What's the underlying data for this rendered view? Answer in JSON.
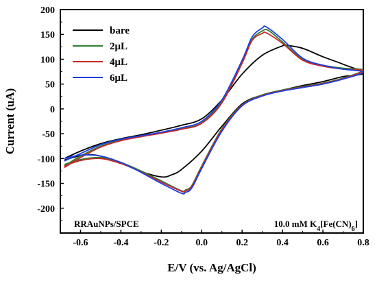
{
  "chart_data": {
    "type": "line",
    "xlabel": "E/V (vs. Ag/AgCl)",
    "ylabel": "Current (uA)",
    "xlim": [
      -0.7,
      0.8
    ],
    "ylim": [
      -250,
      200
    ],
    "x_ticks": [
      -0.6,
      -0.4,
      -0.2,
      0.0,
      0.2,
      0.4,
      0.6,
      0.8
    ],
    "x_tick_labels": [
      "-0.6",
      "-0.4",
      "-0.2",
      "0.0",
      "0.2",
      "0.4",
      "0.6",
      "0.8"
    ],
    "y_ticks": [
      -200,
      -150,
      -100,
      -50,
      0,
      50,
      100,
      150,
      200
    ],
    "y_tick_labels": [
      "-200",
      "-150",
      "-100",
      "-50",
      "0",
      "50",
      "100",
      "150",
      "200"
    ],
    "grid": false,
    "legend_position": "top-left",
    "annotation_left": "RRAuNPs/SPCE",
    "annotation_right": {
      "prefix": "10.0 mM K",
      "sub1": "4",
      "middle": "[Fe(CN)",
      "sub2": "6",
      "suffix": "]"
    },
    "series": [
      {
        "name": "bare",
        "color": "#000000",
        "x": [
          -0.68,
          -0.6,
          -0.5,
          -0.4,
          -0.3,
          -0.2,
          -0.1,
          0.0,
          0.1,
          0.2,
          0.3,
          0.4,
          0.42,
          0.5,
          0.6,
          0.7,
          0.8,
          0.7,
          0.6,
          0.5,
          0.4,
          0.3,
          0.2,
          0.1,
          0.0,
          -0.1,
          -0.15,
          -0.2,
          -0.3,
          -0.4,
          -0.5,
          -0.55,
          -0.6,
          -0.68
        ],
        "y": [
          -100,
          -85,
          -70,
          -60,
          -52,
          -43,
          -33,
          -20,
          18,
          70,
          108,
          127,
          128,
          122,
          105,
          90,
          72,
          65,
          55,
          47,
          38,
          28,
          10,
          -35,
          -85,
          -122,
          -133,
          -137,
          -126,
          -108,
          -95,
          -92,
          -94,
          -103
        ]
      },
      {
        "name": "2μL",
        "color": "#2e7d32",
        "x": [
          -0.68,
          -0.6,
          -0.5,
          -0.4,
          -0.3,
          -0.2,
          -0.1,
          0.0,
          0.1,
          0.2,
          0.25,
          0.3,
          0.33,
          0.4,
          0.5,
          0.6,
          0.7,
          0.8,
          0.7,
          0.6,
          0.5,
          0.4,
          0.3,
          0.2,
          0.1,
          0.0,
          -0.05,
          -0.08,
          -0.1,
          -0.2,
          -0.3,
          -0.4,
          -0.5,
          -0.6,
          -0.68
        ],
        "y": [
          -115,
          -95,
          -75,
          -63,
          -55,
          -48,
          -40,
          -28,
          15,
          95,
          140,
          157,
          158,
          135,
          100,
          88,
          82,
          78,
          62,
          52,
          45,
          38,
          28,
          8,
          -40,
          -115,
          -155,
          -163,
          -165,
          -145,
          -125,
          -108,
          -98,
          -102,
          -112
        ]
      },
      {
        "name": "4μL",
        "color": "#c62828",
        "x": [
          -0.68,
          -0.6,
          -0.5,
          -0.4,
          -0.3,
          -0.2,
          -0.1,
          0.0,
          0.1,
          0.2,
          0.25,
          0.3,
          0.32,
          0.4,
          0.5,
          0.6,
          0.7,
          0.8,
          0.7,
          0.6,
          0.5,
          0.4,
          0.3,
          0.2,
          0.1,
          0.0,
          -0.05,
          -0.08,
          -0.1,
          -0.2,
          -0.3,
          -0.4,
          -0.5,
          -0.6,
          -0.68
        ],
        "y": [
          -118,
          -98,
          -77,
          -64,
          -56,
          -49,
          -41,
          -29,
          12,
          92,
          138,
          152,
          153,
          132,
          98,
          86,
          80,
          77,
          61,
          51,
          44,
          37,
          27,
          7,
          -42,
          -117,
          -157,
          -165,
          -166,
          -147,
          -127,
          -110,
          -100,
          -104,
          -115
        ]
      },
      {
        "name": "6μL",
        "color": "#1e3ee0",
        "x": [
          -0.68,
          -0.6,
          -0.5,
          -0.4,
          -0.3,
          -0.2,
          -0.1,
          0.0,
          0.1,
          0.2,
          0.25,
          0.3,
          0.32,
          0.4,
          0.5,
          0.6,
          0.7,
          0.8,
          0.7,
          0.6,
          0.5,
          0.4,
          0.3,
          0.2,
          0.1,
          0.0,
          -0.05,
          -0.08,
          -0.1,
          -0.2,
          -0.3,
          -0.4,
          -0.5,
          -0.6,
          -0.68
        ],
        "y": [
          -105,
          -90,
          -72,
          -61,
          -54,
          -47,
          -38,
          -25,
          18,
          98,
          145,
          163,
          165,
          140,
          102,
          88,
          80,
          74,
          60,
          50,
          43,
          36,
          26,
          6,
          -45,
          -120,
          -160,
          -168,
          -170,
          -150,
          -128,
          -108,
          -95,
          -93,
          -100
        ]
      }
    ]
  }
}
